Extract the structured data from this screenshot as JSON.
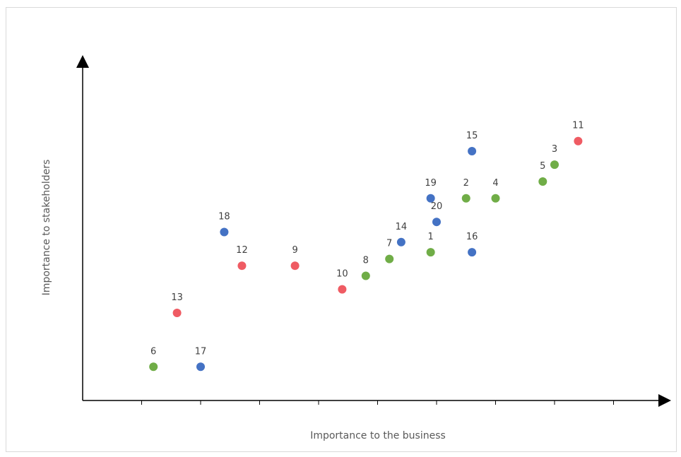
{
  "chart_data": {
    "type": "scatter",
    "xlabel": "Importance to the business",
    "ylabel": "Importance to stakeholders",
    "xlim": [
      0,
      10
    ],
    "ylim": [
      0,
      10
    ],
    "grid": false,
    "legend": "none",
    "tick_marks_x": [
      1,
      2,
      3,
      4,
      5,
      6,
      7,
      8,
      9
    ],
    "colors": {
      "green": "#70ad47",
      "blue": "#4472c4",
      "red": "#ef5b63"
    },
    "points": [
      {
        "label": "1",
        "x": 5.9,
        "y": 4.4,
        "color": "green"
      },
      {
        "label": "2",
        "x": 6.5,
        "y": 6.0,
        "color": "green"
      },
      {
        "label": "3",
        "x": 8.0,
        "y": 7.0,
        "color": "green"
      },
      {
        "label": "4",
        "x": 7.0,
        "y": 6.0,
        "color": "green"
      },
      {
        "label": "5",
        "x": 7.8,
        "y": 6.5,
        "color": "green"
      },
      {
        "label": "6",
        "x": 1.2,
        "y": 1.0,
        "color": "green"
      },
      {
        "label": "7",
        "x": 5.2,
        "y": 4.2,
        "color": "green"
      },
      {
        "label": "8",
        "x": 4.8,
        "y": 3.7,
        "color": "green"
      },
      {
        "label": "9",
        "x": 3.6,
        "y": 4.0,
        "color": "red"
      },
      {
        "label": "10",
        "x": 4.4,
        "y": 3.3,
        "color": "red"
      },
      {
        "label": "11",
        "x": 8.4,
        "y": 7.7,
        "color": "red"
      },
      {
        "label": "12",
        "x": 2.7,
        "y": 4.0,
        "color": "red"
      },
      {
        "label": "13",
        "x": 1.6,
        "y": 2.6,
        "color": "red"
      },
      {
        "label": "14",
        "x": 5.4,
        "y": 4.7,
        "color": "blue"
      },
      {
        "label": "15",
        "x": 6.6,
        "y": 7.4,
        "color": "blue"
      },
      {
        "label": "16",
        "x": 6.6,
        "y": 4.4,
        "color": "blue"
      },
      {
        "label": "17",
        "x": 2.0,
        "y": 1.0,
        "color": "blue"
      },
      {
        "label": "18",
        "x": 2.4,
        "y": 5.0,
        "color": "blue"
      },
      {
        "label": "19",
        "x": 5.9,
        "y": 6.0,
        "color": "blue"
      },
      {
        "label": "20",
        "x": 6.0,
        "y": 5.3,
        "color": "blue"
      }
    ]
  }
}
